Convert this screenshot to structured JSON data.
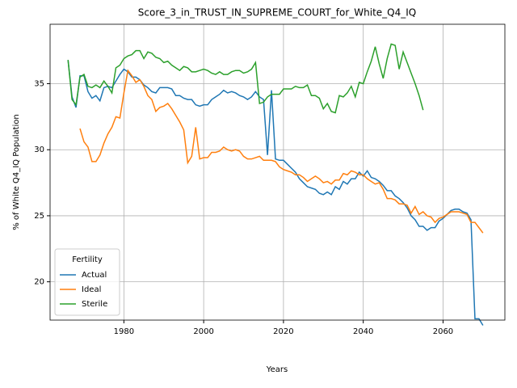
{
  "chart_data": {
    "type": "line",
    "title": "Score_3_in_TRUST_IN_SUPREME_COURT_for_White_Q4_IQ",
    "xlabel": "Years",
    "ylabel": "% of White Q4_IQ Population",
    "legend_title": "Fertility",
    "legend": "lower left",
    "grid": true,
    "xlim": [
      1961.5,
      2075.5
    ],
    "xticks": [
      1980,
      2000,
      2020,
      2040,
      2060
    ],
    "ylim": [
      17.1,
      39.5
    ],
    "yticks": [
      20,
      25,
      30,
      35
    ],
    "x": [
      1966,
      1967,
      1968,
      1969,
      1970,
      1971,
      1972,
      1973,
      1974,
      1975,
      1976,
      1977,
      1978,
      1979,
      1980,
      1981,
      1982,
      1983,
      1984,
      1985,
      1986,
      1987,
      1988,
      1989,
      1990,
      1991,
      1992,
      1993,
      1994,
      1995,
      1996,
      1997,
      1998,
      1999,
      2000,
      2001,
      2002,
      2003,
      2004,
      2005,
      2006,
      2007,
      2008,
      2009,
      2010,
      2011,
      2012,
      2013,
      2014,
      2015,
      2016,
      2017,
      2018,
      2019,
      2020,
      2021,
      2022,
      2023,
      2024,
      2025,
      2026,
      2027,
      2028,
      2029,
      2030,
      2031,
      2032,
      2033,
      2034,
      2035,
      2036,
      2037,
      2038,
      2039,
      2040,
      2041,
      2042,
      2043,
      2044,
      2045,
      2046,
      2047,
      2048,
      2049,
      2050,
      2051,
      2052,
      2053,
      2054,
      2055,
      2056,
      2057,
      2058,
      2059,
      2060,
      2061,
      2062,
      2063,
      2064,
      2065,
      2066,
      2067,
      2068,
      2069,
      2070
    ],
    "series": [
      {
        "name": "Actual",
        "color": "#1f77b4",
        "values": [
          36.8,
          34.0,
          33.2,
          35.6,
          35.6,
          34.4,
          33.9,
          34.1,
          33.7,
          34.7,
          34.8,
          34.7,
          35.2,
          35.7,
          36.1,
          35.9,
          35.5,
          35.5,
          35.3,
          34.9,
          34.7,
          34.4,
          34.3,
          34.7,
          34.7,
          34.7,
          34.6,
          34.1,
          34.1,
          33.9,
          33.8,
          33.8,
          33.4,
          33.3,
          33.4,
          33.4,
          33.8,
          34.0,
          34.2,
          34.5,
          34.3,
          34.4,
          34.3,
          34.1,
          34.0,
          33.8,
          34.0,
          34.4,
          34.0,
          33.8,
          29.6,
          34.5,
          29.3,
          29.2,
          29.2,
          28.9,
          28.6,
          28.3,
          27.8,
          27.5,
          27.2,
          27.1,
          27.0,
          26.7,
          26.6,
          26.8,
          26.6,
          27.2,
          27.0,
          27.6,
          27.4,
          27.8,
          27.8,
          28.3,
          28.0,
          28.4,
          27.9,
          27.8,
          27.6,
          27.3,
          26.9,
          26.9,
          26.5,
          26.3,
          26.0,
          25.6,
          25.0,
          24.7,
          24.2,
          24.2,
          23.9,
          24.1,
          24.1,
          24.6,
          24.8,
          25.1,
          25.4,
          25.5,
          25.5,
          25.3,
          25.2,
          24.7,
          17.2,
          17.2,
          16.7
        ]
      },
      {
        "name": "Ideal",
        "color": "#ff7f0e",
        "values": [
          null,
          null,
          null,
          31.6,
          30.6,
          30.2,
          29.1,
          29.1,
          29.6,
          30.5,
          31.2,
          31.7,
          32.5,
          32.4,
          34.3,
          36.0,
          35.6,
          35.1,
          35.3,
          34.8,
          34.1,
          33.8,
          32.9,
          33.2,
          33.3,
          33.5,
          33.1,
          32.6,
          32.1,
          31.5,
          29.0,
          29.5,
          31.7,
          29.3,
          29.4,
          29.4,
          29.8,
          29.8,
          29.9,
          30.2,
          30.0,
          29.9,
          30.0,
          29.9,
          29.5,
          29.3,
          29.3,
          29.4,
          29.5,
          29.2,
          29.2,
          29.2,
          29.1,
          28.7,
          28.5,
          28.4,
          28.3,
          28.1,
          28.1,
          27.9,
          27.6,
          27.8,
          28.0,
          27.8,
          27.5,
          27.6,
          27.4,
          27.7,
          27.7,
          28.2,
          28.1,
          28.4,
          28.3,
          28.1,
          28.1,
          27.8,
          27.6,
          27.4,
          27.5,
          27.0,
          26.3,
          26.3,
          26.2,
          25.9,
          25.9,
          25.8,
          25.2,
          25.7,
          25.1,
          25.3,
          25.0,
          24.9,
          24.5,
          24.8,
          24.9,
          25.1,
          25.3,
          25.3,
          25.3,
          25.2,
          25.1,
          24.5,
          24.5,
          24.1,
          23.7
        ]
      },
      {
        "name": "Sterile",
        "color": "#2ca02c",
        "values": [
          36.8,
          33.8,
          33.4,
          35.5,
          35.7,
          34.8,
          34.7,
          34.9,
          34.7,
          35.2,
          34.8,
          34.3,
          36.2,
          36.4,
          36.9,
          37.1,
          37.2,
          37.5,
          37.5,
          36.9,
          37.4,
          37.3,
          37.0,
          36.9,
          36.6,
          36.7,
          36.4,
          36.2,
          36.0,
          36.3,
          36.2,
          35.9,
          35.9,
          36.0,
          36.1,
          36.0,
          35.8,
          35.7,
          35.9,
          35.7,
          35.7,
          35.9,
          36.0,
          36.0,
          35.8,
          35.9,
          36.1,
          36.6,
          33.5,
          33.6,
          34.0,
          34.2,
          34.2,
          34.2,
          34.6,
          34.6,
          34.6,
          34.8,
          34.7,
          34.7,
          34.9,
          34.1,
          34.1,
          33.9,
          33.1,
          33.5,
          32.9,
          32.8,
          34.1,
          34.0,
          34.3,
          34.8,
          34.0,
          35.1,
          35.0,
          35.9,
          36.7,
          37.8,
          36.5,
          35.4,
          36.9,
          38.0,
          37.9,
          36.1,
          37.4,
          36.6,
          35.8,
          35.0,
          34.1,
          33.0,
          null,
          null,
          null,
          null,
          null,
          null,
          null,
          null,
          null,
          null,
          null,
          null,
          null,
          null,
          null
        ]
      }
    ]
  }
}
